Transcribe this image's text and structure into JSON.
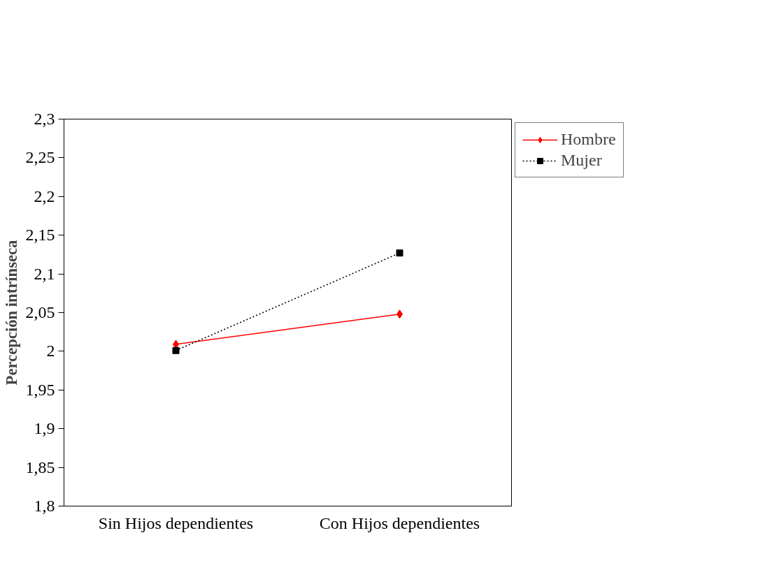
{
  "chart_data": {
    "type": "line",
    "ylabel": "Percepción intrínseca",
    "categories": [
      "Sin Hijos dependientes",
      "Con Hijos dependientes"
    ],
    "series": [
      {
        "name": "Hombre",
        "color": "#ff0000",
        "values": [
          2.009,
          2.048
        ],
        "marker": "diamond",
        "line_style": "solid"
      },
      {
        "name": "Mujer",
        "color": "#000000",
        "values": [
          2.001,
          2.127
        ],
        "marker": "square",
        "line_style": "dotted"
      }
    ],
    "ylim": [
      1.8,
      2.3
    ],
    "yticks": [
      {
        "value": 1.8,
        "label": "1,8"
      },
      {
        "value": 1.85,
        "label": "1,85"
      },
      {
        "value": 1.9,
        "label": "1,9"
      },
      {
        "value": 1.95,
        "label": "1,95"
      },
      2,
      {
        "value": 2.05,
        "label": "2,05"
      },
      {
        "value": 2.1,
        "label": "2,1"
      },
      {
        "value": 2.15,
        "label": "2,15"
      },
      {
        "value": 2.2,
        "label": "2,2"
      },
      {
        "value": 2.25,
        "label": "2,25"
      },
      {
        "value": 2.3,
        "label": "2,3"
      }
    ],
    "grid": false,
    "legend": "right"
  }
}
